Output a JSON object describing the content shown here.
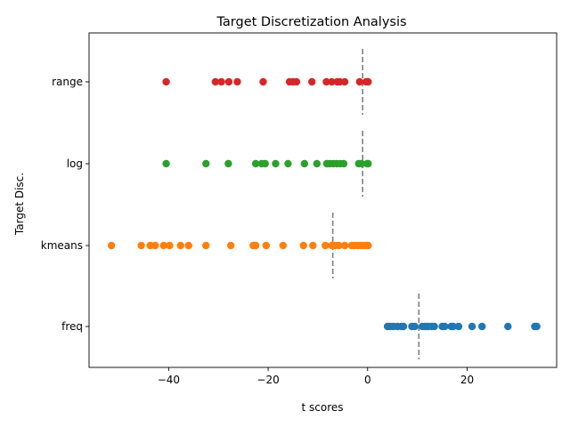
{
  "chart_data": {
    "type": "scatter",
    "title": "Target Discretization Analysis",
    "xlabel": "t scores",
    "ylabel": "Target Disc.",
    "xlim": [
      -56,
      38
    ],
    "x_ticks": [
      -40,
      -20,
      0,
      20
    ],
    "categories": [
      "freq",
      "kmeans",
      "log",
      "range"
    ],
    "grid": false,
    "legend": "none",
    "series": [
      {
        "category": "freq",
        "color": "#1f77b4",
        "threshold": 10.3,
        "x": [
          4.0,
          4.5,
          5.2,
          6.0,
          6.8,
          7.2,
          8.9,
          9.5,
          11.0,
          11.6,
          12.2,
          12.9,
          13.4,
          15.0,
          15.5,
          16.8,
          17.2,
          18.3,
          21.0,
          23.0,
          28.2,
          33.6,
          34.0
        ]
      },
      {
        "category": "kmeans",
        "color": "#ff7f0e",
        "threshold": -7.0,
        "x": [
          -51.5,
          -45.5,
          -43.7,
          -42.7,
          -41.0,
          -39.8,
          -37.6,
          -36.0,
          -32.5,
          -27.5,
          -23.0,
          -22.5,
          -20.4,
          -17.0,
          -12.9,
          -11.0,
          -8.5,
          -7.2,
          -6.5,
          -5.8,
          -4.6,
          -3.2,
          -2.6,
          -1.9,
          -1.3,
          -0.7,
          -0.2,
          0.1
        ]
      },
      {
        "category": "log",
        "color": "#2ca02c",
        "threshold": -1.0,
        "x": [
          -40.5,
          -32.5,
          -28.0,
          -22.5,
          -21.3,
          -20.6,
          -18.5,
          -16.0,
          -12.7,
          -10.2,
          -8.2,
          -7.6,
          -6.9,
          -6.2,
          -5.5,
          -4.8,
          -1.8,
          -1.2,
          -0.1,
          0.1
        ]
      },
      {
        "category": "range",
        "color": "#d62728",
        "threshold": -1.0,
        "x": [
          -40.5,
          -30.6,
          -29.4,
          -27.9,
          -26.2,
          -21.0,
          -15.7,
          -15.0,
          -14.3,
          -11.2,
          -8.3,
          -7.2,
          -6.1,
          -5.6,
          -4.6,
          -1.6,
          -0.3,
          0.0,
          0.1
        ]
      }
    ]
  }
}
